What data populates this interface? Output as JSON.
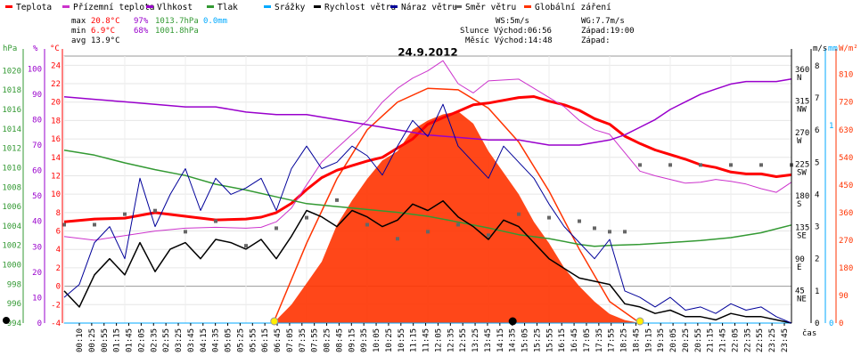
{
  "legend": [
    {
      "label": "Teplota",
      "color": "#ff0000"
    },
    {
      "label": "Přízemní teplota",
      "color": "#cc33cc"
    },
    {
      "label": "Vlhkost",
      "color": "#9900cc"
    },
    {
      "label": "Tlak",
      "color": "#339933"
    },
    {
      "label": "Srážky",
      "color": "#00aaff"
    },
    {
      "label": "Rychlost větru",
      "color": "#000000"
    },
    {
      "label": "Náraz větru",
      "color": "#000099"
    },
    {
      "label": "Směr větru",
      "color": "#666666"
    },
    {
      "label": "Globální záření",
      "color": "#ff3300"
    }
  ],
  "stats": {
    "max": {
      "label": "max",
      "temp": "20.8°C",
      "hum": "97%",
      "press": "1013.7hPa",
      "rain": "0.0mm"
    },
    "min": {
      "label": "min",
      "temp": "6.9°C",
      "hum": "68%",
      "press": "1001.8hPa"
    },
    "avg": {
      "label": "avg",
      "temp": "13.9°C"
    }
  },
  "info": {
    "ws": "WS:5m/s",
    "wg": "WG:7.7m/s",
    "sun": "Slunce Východ:06:56",
    "sun_set": "Západ:19:00",
    "moon": "Měsíc Východ:14:48",
    "moon_set": "Západ:"
  },
  "chart_data": {
    "type": "line",
    "title": "24.9.2012",
    "x_axis_label": "čas",
    "axes": {
      "hpa": {
        "unit": "hPa",
        "color": "#339933",
        "ticks": [
          "1020",
          "1018",
          "1016",
          "1014",
          "1012",
          "1010",
          "1008",
          "1006",
          "1004",
          "1002",
          "1000",
          "998",
          "996",
          "994"
        ]
      },
      "pct": {
        "unit": "%",
        "color": "#9900cc",
        "ticks": [
          "100",
          "90",
          "80",
          "70",
          "60",
          "50",
          "40",
          "30",
          "20",
          "10",
          "0"
        ]
      },
      "degc": {
        "unit": "°C",
        "color": "#ff0000",
        "ticks": [
          "24",
          "22",
          "20",
          "18",
          "16",
          "14",
          "12",
          "10",
          "8",
          "6",
          "4",
          "2",
          "0",
          "-2",
          "-4"
        ]
      },
      "ms": {
        "unit": "m/s",
        "color": "#000000",
        "ticks": [
          "8",
          "7",
          "6",
          "5",
          "4",
          "3",
          "2",
          "1",
          "0"
        ]
      },
      "mm": {
        "unit": "mm",
        "color": "#00aaff",
        "ticks": [
          "1",
          "0"
        ]
      },
      "wm2": {
        "unit": "W/m²",
        "color": "#ff3300",
        "ticks": [
          "810",
          "720",
          "630",
          "540",
          "450",
          "360",
          "270",
          "180",
          "90",
          "0"
        ]
      },
      "dir": {
        "ticks": [
          "360",
          "315",
          "270",
          "225",
          "180",
          "135",
          "90",
          "45"
        ],
        "labels": [
          "N",
          "NW",
          "W",
          "SW",
          "S",
          "SE",
          "E",
          "NE"
        ]
      }
    },
    "time_labels": [
      "00:10",
      "00:25",
      "00:55",
      "01:15",
      "01:45",
      "02:05",
      "02:35",
      "02:55",
      "03:25",
      "03:45",
      "04:15",
      "04:35",
      "05:05",
      "05:25",
      "05:55",
      "06:15",
      "06:45",
      "07:05",
      "07:35",
      "07:55",
      "08:25",
      "08:45",
      "09:15",
      "09:35",
      "10:05",
      "10:25",
      "10:55",
      "11:15",
      "11:45",
      "12:05",
      "12:35",
      "12:55",
      "13:25",
      "13:45",
      "14:15",
      "14:35",
      "15:05",
      "15:25",
      "15:55",
      "16:15",
      "16:45",
      "17:05",
      "17:35",
      "17:55",
      "18:25",
      "18:45",
      "19:15",
      "19:35",
      "20:05",
      "20:25",
      "20:55",
      "21:15",
      "21:45",
      "22:05",
      "22:35",
      "22:55",
      "23:25",
      "23:45"
    ],
    "x_range_hours": [
      0,
      24
    ],
    "sunrise": "06:56",
    "sunset": "19:00",
    "series": [
      {
        "name": "Teplota",
        "axis": "degc",
        "color": "#ff0000",
        "x": [
          0,
          1,
          2,
          3,
          4,
          5,
          6,
          6.5,
          7,
          7.5,
          8,
          8.5,
          9,
          9.5,
          10,
          10.5,
          11,
          11.5,
          12,
          12.5,
          13,
          13.5,
          14,
          14.5,
          15,
          15.5,
          16,
          16.5,
          17,
          17.5,
          18,
          18.5,
          19,
          19.5,
          20,
          20.5,
          21,
          21.5,
          22,
          22.5,
          23,
          23.5,
          24
        ],
        "y": [
          7.0,
          7.3,
          7.4,
          8.0,
          7.6,
          7.2,
          7.3,
          7.5,
          8.0,
          9.0,
          10.5,
          11.8,
          12.6,
          13.1,
          13.6,
          14.0,
          15.0,
          16.0,
          17.6,
          18.3,
          19.0,
          19.7,
          19.9,
          20.2,
          20.5,
          20.6,
          20.1,
          19.7,
          19.1,
          18.2,
          17.6,
          16.3,
          15.5,
          14.8,
          14.3,
          13.8,
          13.2,
          12.9,
          12.4,
          12.2,
          12.2,
          11.9,
          12.1
        ]
      },
      {
        "name": "Přízemní teplota",
        "axis": "degc",
        "color": "#cc33cc",
        "x": [
          0,
          1,
          2,
          3,
          4,
          5,
          6,
          6.5,
          7,
          7.5,
          8,
          8.5,
          9,
          9.5,
          10,
          10.5,
          11,
          11.5,
          12,
          12.5,
          13,
          13.5,
          14,
          14.5,
          15,
          15.5,
          16,
          16.5,
          17,
          17.5,
          18,
          18.5,
          19,
          19.5,
          20,
          20.5,
          21,
          21.5,
          22,
          22.5,
          23,
          23.5,
          24
        ],
        "y": [
          5.4,
          5.0,
          5.5,
          6.0,
          6.3,
          6.4,
          6.3,
          6.4,
          7.0,
          8.5,
          11.0,
          13.5,
          15.0,
          16.5,
          18.0,
          20.0,
          21.5,
          22.6,
          23.4,
          24.5,
          22.0,
          21.0,
          22.3,
          22.4,
          22.5,
          21.5,
          20.5,
          19.5,
          18.0,
          17.0,
          16.5,
          14.5,
          12.5,
          12.0,
          11.6,
          11.2,
          11.3,
          11.6,
          11.4,
          11.1,
          10.6,
          10.2,
          11.3
        ]
      },
      {
        "name": "Vlhkost",
        "axis": "pct",
        "color": "#9900cc",
        "x": [
          0,
          1,
          2,
          3,
          4,
          5,
          6,
          7,
          8,
          9,
          10,
          11,
          12,
          13,
          14,
          15,
          16,
          17,
          18,
          18.5,
          19,
          19.5,
          20,
          20.5,
          21,
          21.5,
          22,
          22.5,
          23,
          23.5,
          24
        ],
        "y": [
          89,
          88,
          87,
          86,
          85,
          85,
          83,
          82,
          82,
          80,
          78,
          76,
          74,
          73,
          72,
          72,
          70,
          70,
          72,
          74,
          77,
          80,
          84,
          87,
          90,
          92,
          94,
          95,
          95,
          95,
          96
        ]
      },
      {
        "name": "Tlak",
        "axis": "hpa",
        "color": "#339933",
        "x": [
          0,
          1,
          2,
          3,
          4,
          5,
          6,
          7,
          8,
          9,
          10,
          11,
          12,
          13,
          14,
          15,
          16,
          17,
          17.5,
          18,
          19,
          20,
          21,
          22,
          23,
          24
        ],
        "y": [
          1011.8,
          1011.3,
          1010.5,
          1009.8,
          1009.2,
          1008.3,
          1007.7,
          1007.0,
          1006.3,
          1006.0,
          1005.7,
          1005.4,
          1005.0,
          1004.4,
          1003.8,
          1003.1,
          1002.7,
          1002.1,
          1001.9,
          1002.0,
          1002.1,
          1002.3,
          1002.5,
          1002.8,
          1003.3,
          1004.1
        ]
      },
      {
        "name": "Srážky",
        "axis": "mm",
        "color": "#00aaff",
        "x": [
          0,
          24
        ],
        "y": [
          0,
          0
        ]
      },
      {
        "name": "Rychlost větru",
        "axis": "ms",
        "color": "#000000",
        "x": [
          0,
          0.5,
          1,
          1.5,
          2,
          2.5,
          3,
          3.5,
          4,
          4.5,
          5,
          5.5,
          6,
          6.5,
          7,
          7.5,
          8,
          8.5,
          9,
          9.5,
          10,
          10.5,
          11,
          11.5,
          12,
          12.5,
          13,
          13.5,
          14,
          14.5,
          15,
          15.5,
          16,
          16.5,
          17,
          17.5,
          18,
          18.5,
          19,
          19.5,
          20,
          20.5,
          21,
          21.5,
          22,
          22.5,
          23,
          23.5,
          24
        ],
        "y": [
          1.0,
          0.5,
          1.5,
          2.0,
          1.5,
          2.5,
          1.6,
          2.3,
          2.5,
          2.0,
          2.6,
          2.5,
          2.3,
          2.6,
          2.0,
          2.7,
          3.5,
          3.3,
          3.0,
          3.5,
          3.3,
          3.0,
          3.2,
          3.7,
          3.5,
          3.8,
          3.3,
          3.0,
          2.6,
          3.2,
          3.0,
          2.5,
          2.0,
          1.7,
          1.4,
          1.3,
          1.2,
          0.6,
          0.5,
          0.3,
          0.4,
          0.2,
          0.2,
          0.1,
          0.3,
          0.2,
          0.2,
          0.1,
          0.0
        ]
      },
      {
        "name": "Náraz větru",
        "axis": "ms",
        "color": "#000099",
        "x": [
          0,
          0.5,
          1,
          1.5,
          2,
          2.5,
          3,
          3.5,
          4,
          4.5,
          5,
          5.5,
          6,
          6.5,
          7,
          7.5,
          8,
          8.5,
          9,
          9.5,
          10,
          10.5,
          11,
          11.5,
          12,
          12.5,
          13,
          13.5,
          14,
          14.5,
          15,
          15.5,
          16,
          16.5,
          17,
          17.5,
          18,
          18.5,
          19,
          19.5,
          20,
          20.5,
          21,
          21.5,
          22,
          22.5,
          23,
          23.5,
          24
        ],
        "y": [
          0.8,
          1.2,
          2.5,
          3.0,
          2.0,
          4.5,
          3.0,
          4.0,
          4.8,
          3.5,
          4.5,
          4.0,
          4.2,
          4.5,
          3.5,
          4.8,
          5.5,
          4.8,
          5.0,
          5.5,
          5.2,
          4.6,
          5.5,
          6.3,
          5.8,
          6.8,
          5.5,
          5.0,
          4.5,
          5.5,
          5.0,
          4.5,
          3.7,
          3.0,
          2.5,
          2.0,
          2.6,
          1.0,
          0.8,
          0.5,
          0.8,
          0.4,
          0.5,
          0.3,
          0.6,
          0.4,
          0.5,
          0.2,
          0.0
        ]
      },
      {
        "name": "Směr větru",
        "axis": "dir",
        "color": "#666666",
        "x": [
          0,
          1,
          2,
          3,
          4,
          5,
          6,
          7,
          8,
          9,
          10,
          11,
          12,
          13,
          14,
          15,
          16,
          17,
          17.5,
          18,
          18.5,
          19,
          20,
          21,
          22,
          23,
          24
        ],
        "y": [
          140,
          140,
          155,
          160,
          130,
          145,
          110,
          135,
          150,
          175,
          140,
          120,
          130,
          140,
          125,
          155,
          150,
          145,
          135,
          130,
          130,
          225,
          225,
          225,
          225,
          225,
          225
        ]
      },
      {
        "name": "Globální záření",
        "axis": "wm2",
        "color": "#ff3300",
        "x": [
          6.9,
          7.5,
          8,
          8.5,
          9,
          9.5,
          10,
          10.5,
          11,
          11.5,
          12,
          12.5,
          13,
          13.5,
          14,
          14.5,
          15,
          15.5,
          16,
          16.5,
          17,
          17.5,
          18,
          18.5,
          19
        ],
        "y": [
          0,
          60,
          130,
          200,
          320,
          400,
          470,
          530,
          560,
          630,
          660,
          680,
          690,
          650,
          560,
          490,
          420,
          330,
          260,
          180,
          120,
          70,
          30,
          10,
          0
        ]
      },
      {
        "name": "Globální záření (max)",
        "axis": "wm2",
        "color": "#ff3300",
        "x": [
          6.9,
          8,
          9,
          10,
          11,
          12,
          13,
          14,
          15,
          16,
          17,
          18,
          19
        ],
        "y": [
          0,
          260,
          470,
          630,
          720,
          765,
          760,
          700,
          590,
          430,
          240,
          70,
          0
        ]
      }
    ]
  }
}
